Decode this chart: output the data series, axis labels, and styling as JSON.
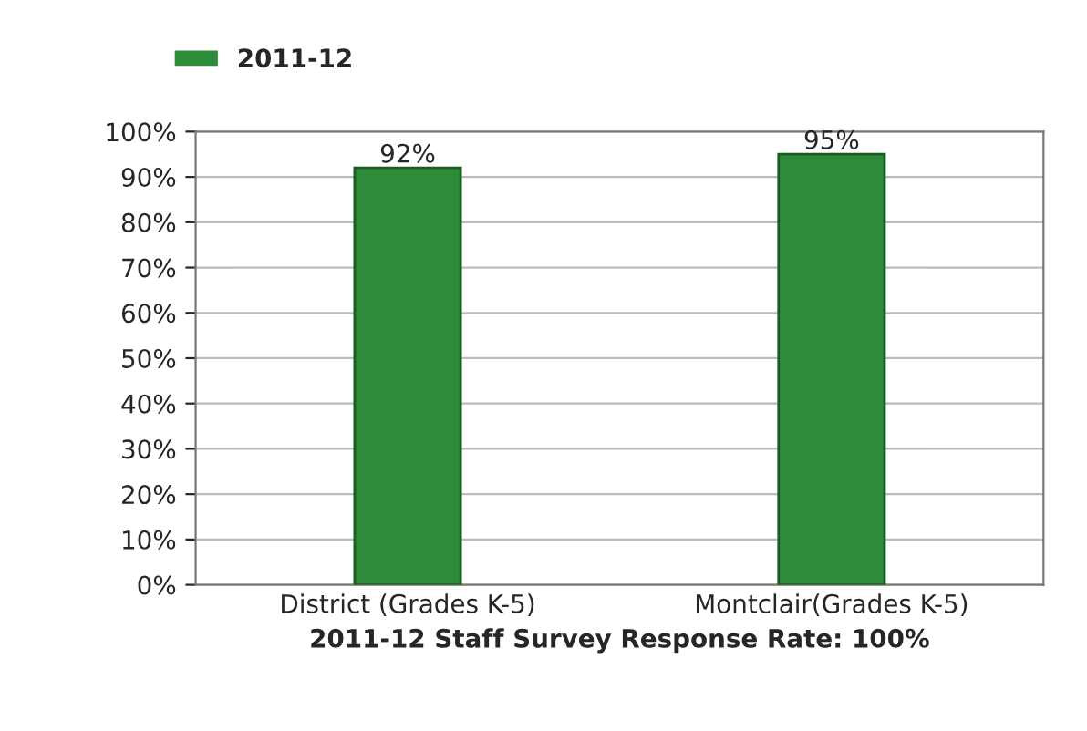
{
  "chart_data": {
    "type": "bar",
    "xlabel": "2011-12 Staff Survey Response Rate: 100%",
    "categories": [
      "District (Grades K-5)",
      "Montclair(Grades K-5)"
    ],
    "series": [
      {
        "name": "2011-12",
        "color": "#2e8b3a",
        "values": [
          92,
          95
        ],
        "value_labels": [
          "92%",
          "95%"
        ]
      }
    ],
    "ylim": [
      0,
      100
    ],
    "yticks": [
      {
        "value": 0,
        "label": "0%"
      },
      {
        "value": 10,
        "label": "10%"
      },
      {
        "value": 20,
        "label": "20%"
      },
      {
        "value": 30,
        "label": "30%"
      },
      {
        "value": 40,
        "label": "40%"
      },
      {
        "value": 50,
        "label": "50%"
      },
      {
        "value": 60,
        "label": "60%"
      },
      {
        "value": 70,
        "label": "70%"
      },
      {
        "value": 80,
        "label": "80%"
      },
      {
        "value": 90,
        "label": "90%"
      },
      {
        "value": 100,
        "label": "100%"
      }
    ],
    "grid": "y",
    "legend": "top left"
  }
}
